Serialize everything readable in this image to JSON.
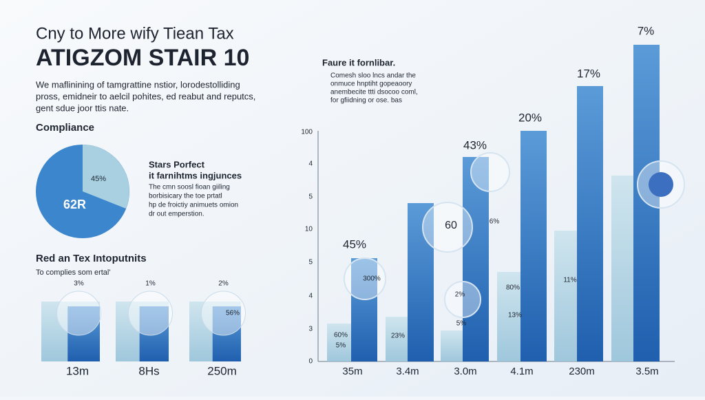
{
  "header": {
    "title_line1": "Cny to More wify Tiean Tax",
    "title_line2": "ATIGZOM STAIR 10",
    "intro": [
      "We maflinining of tamgrattine nstior, lorodestolliding",
      "pross, emidneir to aelcil pohites, ed reabut and reputcs,",
      "gent sdue joor ttis nate."
    ]
  },
  "compliance": {
    "heading": "Compliance",
    "pie_labels": [
      "45%",
      "62R"
    ],
    "side_title": [
      "Stars Porfect",
      "it farnihtms ingjunces"
    ],
    "side_text": [
      "The cmn soosl fioan giiling",
      "borbisicary the toe prtatl",
      "hp de froictiy animuets omion",
      "dr out emperstion."
    ]
  },
  "tax_inputs": {
    "heading": "Red an Tex Intoputnits",
    "subheading": "To complies som ertal'",
    "top_labels": [
      "3%",
      "1%",
      "2%"
    ],
    "inner_labels": [
      "56%"
    ],
    "bottom_labels": [
      "13m",
      "8Hs",
      "250m"
    ]
  },
  "main_chart": {
    "note_title": "Faure it fornlibar.",
    "note_text": [
      "Comesh sloo lncs andar the",
      "onmuce hnptiht gopeaoory",
      "anembecite ttti dsocoo coml,",
      "for gfiidning or ose. bas"
    ],
    "axis_labels": [
      "100",
      "4",
      "5",
      "10",
      "5",
      "4",
      "3",
      "0"
    ],
    "top_labels": [
      "45%",
      "43%",
      "20%",
      "17%",
      "7%"
    ],
    "inner_labels": [
      "300%",
      "60",
      "6%",
      "80%",
      "11%",
      "2%",
      "5%",
      "13%",
      "60%",
      "5%",
      "23%"
    ],
    "x_labels": [
      "35m",
      "3.4m",
      "3.0m",
      "4.1m",
      "230m",
      "3.5m"
    ]
  }
}
